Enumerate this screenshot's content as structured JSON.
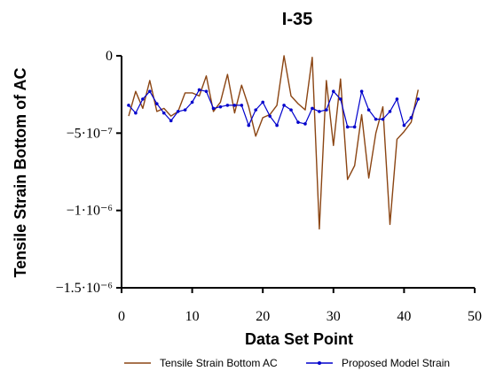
{
  "chart_data": {
    "type": "line",
    "title": "I-35",
    "xlabel": "Data Set Point",
    "ylabel": "Tensile Strain Bottom of AC",
    "xlim": [
      0,
      50
    ],
    "ylim": [
      -1.5e-06,
      0
    ],
    "x_ticks": [
      0,
      10,
      20,
      30,
      40,
      50
    ],
    "x_tick_labels": [
      "0",
      "10",
      "20",
      "30",
      "40",
      "50"
    ],
    "y_ticks": [
      0,
      -5e-07,
      -1e-06,
      -1.5e-06
    ],
    "y_tick_labels": [
      "0",
      "−5·10⁻⁷",
      "−1·10⁻⁶",
      "−1.5·10⁻⁶"
    ],
    "legend_position": "bottom",
    "x": [
      1,
      2,
      3,
      4,
      5,
      6,
      7,
      8,
      9,
      10,
      11,
      12,
      13,
      14,
      15,
      16,
      17,
      18,
      19,
      20,
      21,
      22,
      23,
      24,
      25,
      26,
      27,
      28,
      29,
      30,
      31,
      32,
      33,
      34,
      35,
      36,
      37,
      38,
      39,
      40,
      41,
      42
    ],
    "series": [
      {
        "name": "Tensile Strain Bottom AC",
        "color": "#8B4513",
        "marker": "none",
        "values": [
          -3.9e-07,
          -2.3e-07,
          -3.4e-07,
          -1.6e-07,
          -3.6e-07,
          -3.4e-07,
          -3.9e-07,
          -3.6e-07,
          -2.4e-07,
          -2.4e-07,
          -2.6e-07,
          -1.3e-07,
          -3.6e-07,
          -3e-07,
          -1.2e-07,
          -3.7e-07,
          -1.9e-07,
          -3.3e-07,
          -5.2e-07,
          -4e-07,
          -3.8e-07,
          -3.2e-07,
          0.0,
          -2.6e-07,
          -3.1e-07,
          -3.5e-07,
          -1e-08,
          -1.12e-06,
          -1.6e-07,
          -5.8e-07,
          -1.5e-07,
          -8e-07,
          -7.1e-07,
          -3.8e-07,
          -7.9e-07,
          -5e-07,
          -3.3e-07,
          -1.09e-06,
          -5.4e-07,
          -4.9e-07,
          -4.3e-07,
          -2.2e-07
        ]
      },
      {
        "name": "Proposed Model Strain",
        "color": "#0000CC",
        "marker": "dot",
        "values": [
          -3.2e-07,
          -3.7e-07,
          -2.8e-07,
          -2.3e-07,
          -3.1e-07,
          -3.7e-07,
          -4.2e-07,
          -3.6e-07,
          -3.5e-07,
          -3e-07,
          -2.2e-07,
          -2.3e-07,
          -3.4e-07,
          -3.3e-07,
          -3.2e-07,
          -3.2e-07,
          -3.2e-07,
          -4.5e-07,
          -3.5e-07,
          -3e-07,
          -3.9e-07,
          -4.5e-07,
          -3.2e-07,
          -3.5e-07,
          -4.3e-07,
          -4.4e-07,
          -3.4e-07,
          -3.6e-07,
          -3.5e-07,
          -2.3e-07,
          -2.8e-07,
          -4.6e-07,
          -4.6e-07,
          -2.3e-07,
          -3.5e-07,
          -4.1e-07,
          -4.1e-07,
          -3.6e-07,
          -2.8e-07,
          -4.5e-07,
          -4e-07,
          -2.8e-07
        ]
      }
    ]
  }
}
